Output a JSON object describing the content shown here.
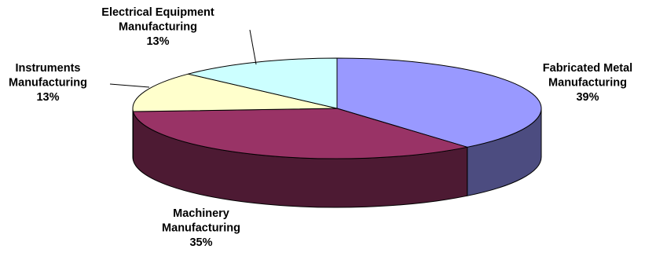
{
  "chart_data": {
    "type": "pie",
    "style": "3d",
    "title": "",
    "legend": "none",
    "slices": [
      {
        "key": "fabricated-metal",
        "label_lines": [
          "Fabricated Metal",
          "Manufacturing"
        ],
        "percent_label": "39%",
        "value": 39,
        "top_color": "#9999ff",
        "side_color": "#4c4c80"
      },
      {
        "key": "machinery",
        "label_lines": [
          "Machinery",
          "Manufacturing"
        ],
        "percent_label": "35%",
        "value": 35,
        "top_color": "#993366",
        "side_color": "#4d1a33"
      },
      {
        "key": "instruments",
        "label_lines": [
          "Instruments",
          "Manufacturing"
        ],
        "percent_label": "13%",
        "value": 13,
        "top_color": "#ffffcc",
        "side_color": "#80805f"
      },
      {
        "key": "electrical-equipment",
        "label_lines": [
          "Electrical Equipment",
          "Manufacturing"
        ],
        "percent_label": "13%",
        "value": 13,
        "top_color": "#ccffff",
        "side_color": "#668080"
      }
    ]
  }
}
